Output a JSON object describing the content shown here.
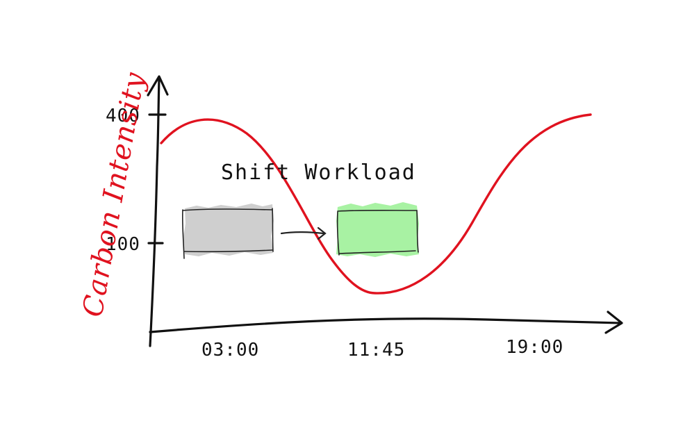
{
  "diagram": {
    "y_axis_label": "Carbon Intensity",
    "y_ticks": [
      "400",
      "100"
    ],
    "x_ticks": [
      "03:00",
      "11:45",
      "19:00"
    ],
    "annotation": "Shift Workload",
    "colors": {
      "ink": "#111111",
      "curve": "#e0121f",
      "workload_before": "#cfcfcf",
      "workload_after": "#a8f2a3"
    },
    "elements": [
      "x-axis-arrow",
      "y-axis-arrow",
      "carbon-curve",
      "workload-before",
      "shift-arrow",
      "workload-after"
    ]
  }
}
